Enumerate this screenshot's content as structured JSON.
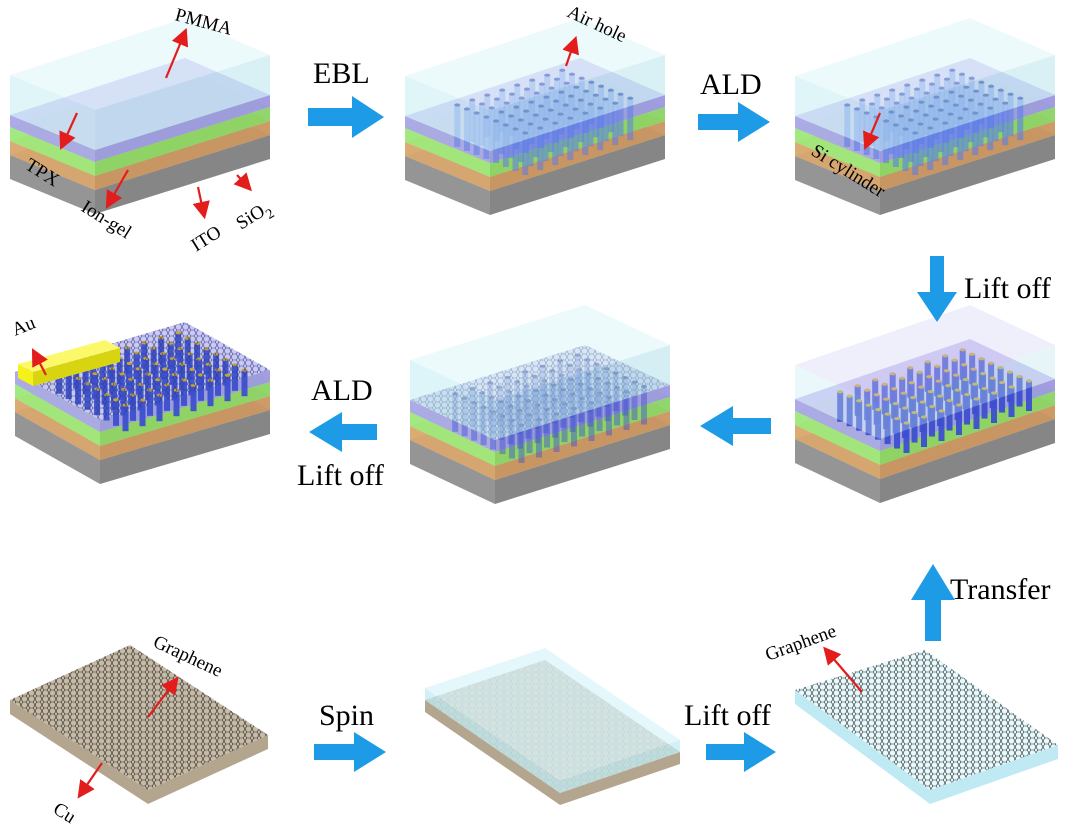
{
  "steps": {
    "ebl": "EBL",
    "ald_1": "ALD",
    "lift_off_1": "Lift off",
    "ald_2": "ALD",
    "lift_off_2": "Lift off",
    "spin": "Spin",
    "lift_off_3": "Lift off",
    "transfer": "Transfer"
  },
  "labels": {
    "pmma": "PMMA",
    "tpx": "TPX",
    "ion_gel": "Ion-gel",
    "ito": "ITO",
    "sio2": "SiO",
    "sio2_sub": "2",
    "air_hole": "Air hole",
    "si_cylinder": "Si cylinder",
    "au": "Au",
    "graphene_1": "Graphene",
    "cu": "Cu",
    "graphene_2": "Graphene"
  },
  "colors": {
    "arrow_blue": "#1e9be6",
    "label_arrow_red": "#e31c1c",
    "pmma": "#cfeff5",
    "purple_layer": "#a9a6e6",
    "tpx_green": "#9ee87a",
    "ion_gel_orange": "#d9a76f",
    "substrate_gray": "#8c8c8c",
    "gold": "#f5f21a",
    "pillar_blue": "#3d4fd0",
    "cu_tan": "#c8bba6"
  }
}
